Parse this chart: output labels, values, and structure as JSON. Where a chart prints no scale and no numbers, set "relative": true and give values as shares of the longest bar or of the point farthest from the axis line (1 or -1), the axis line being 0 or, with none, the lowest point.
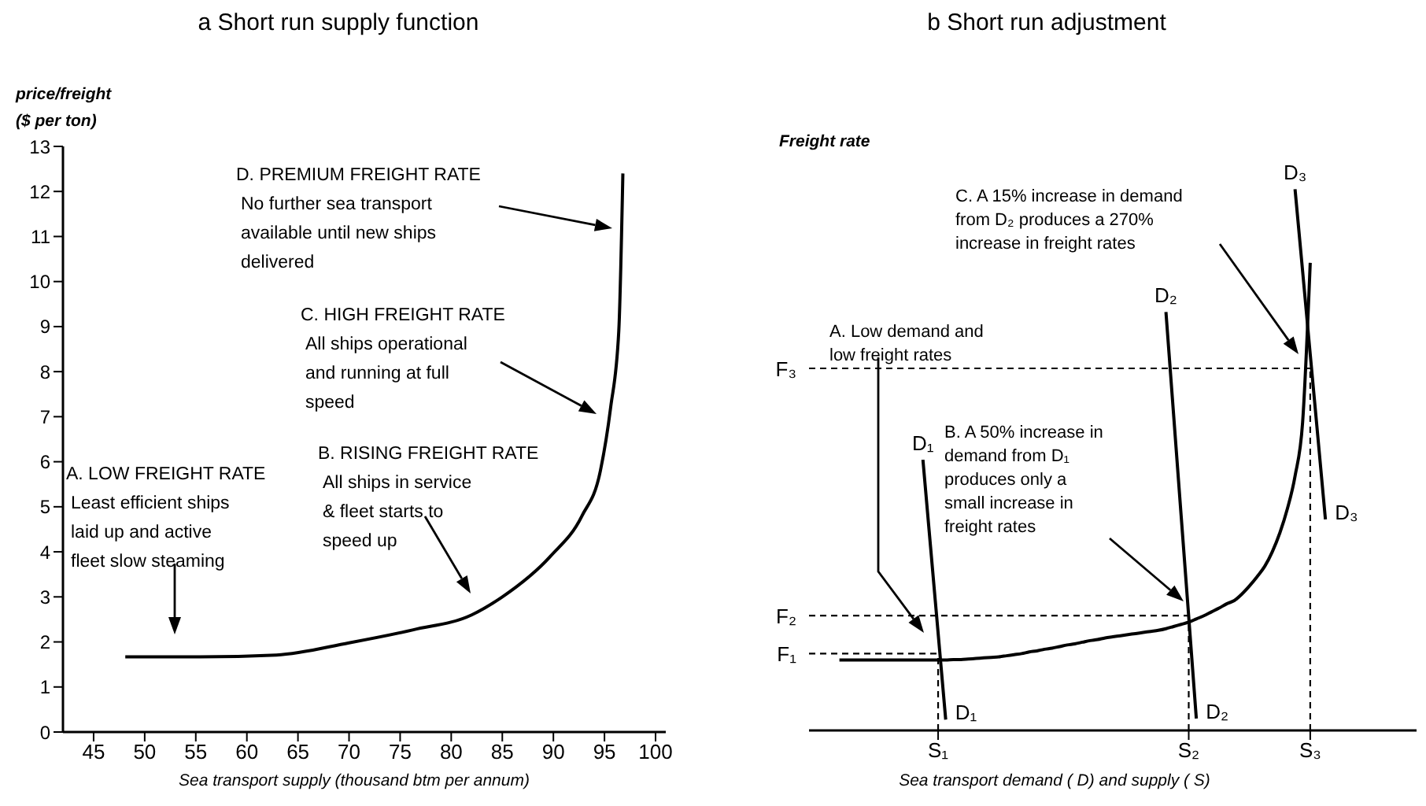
{
  "chart_data": [
    {
      "type": "line",
      "title": "a Short run supply function",
      "xlabel": "Sea transport supply (thousand btm per annum)",
      "ylabel": "price/freight\n($ per ton)",
      "marker": "none",
      "xlim": [
        42,
        101
      ],
      "xticks": [
        45,
        50,
        55,
        60,
        65,
        70,
        75,
        80,
        85,
        90,
        95,
        100
      ],
      "ylim": [
        0,
        13
      ],
      "yticks": [
        0,
        1,
        2,
        3,
        4,
        5,
        6,
        7,
        8,
        9,
        10,
        11,
        12,
        13
      ],
      "series": [
        {
          "color": "#000000",
          "x": [
            48.1,
            55,
            62.9,
            70,
            76.3,
            82,
            85,
            89.7,
            92.8,
            94.6,
            95.6,
            96.4,
            96.8
          ],
          "values": [
            1.67,
            1.67,
            1.71,
            1.98,
            2.27,
            2.6,
            3.0,
            3.9,
            4.8,
            5.8,
            7.2,
            8.9,
            12.4
          ]
        }
      ],
      "annotations": [
        "A. LOW FREIGHT RATE\nLeast efficient ships\nlaid up and active\nfleet slow steaming",
        "B. RISING FREIGHT RATE\nAll ships in service\n& fleet starts to\nspeed up",
        "C. HIGH FREIGHT RATE\nAll ships operational\nand running at full\nspeed",
        "D. PREMIUM FREIGHT RATE\nNo further sea transport\navailable until new ships\ndelivered"
      ]
    },
    {
      "type": "line",
      "title": "b Short run adjustment",
      "xlabel": "Sea transport demand ( D) and supply ( S)",
      "ylabel": "Freight rate",
      "relative": true,
      "marker": "none",
      "categories": [
        null,
        null,
        null,
        null,
        null,
        null,
        null,
        null,
        null,
        null,
        null,
        null,
        null,
        null,
        null,
        null,
        null,
        "S₁",
        null,
        null,
        null,
        null,
        null,
        null,
        null,
        null,
        null,
        null,
        null,
        null,
        null,
        null,
        null,
        null,
        null,
        null,
        null,
        null,
        null,
        null,
        null,
        null,
        null,
        null,
        null,
        null,
        null,
        null,
        null,
        null,
        "S₂",
        null,
        null,
        null,
        null,
        null,
        null,
        null,
        null,
        null,
        null,
        null,
        null,
        null,
        null,
        null,
        "S₃",
        null,
        null,
        null,
        null,
        null,
        null,
        null,
        null,
        null,
        null,
        null,
        null,
        null,
        null
      ],
      "series": [
        {
          "color": "#000000",
          "values": [
            null,
            null,
            null,
            null,
            0.13,
            0.13,
            0.13,
            0.13,
            0.13,
            0.13,
            0.13,
            0.13,
            0.13,
            0.13,
            0.13,
            0.13,
            0.13,
            0.13,
            0.13,
            0.131,
            0.131,
            0.132,
            0.133,
            0.134,
            0.135,
            0.136,
            0.138,
            0.14,
            0.142,
            0.145,
            0.147,
            0.15,
            0.152,
            0.155,
            0.158,
            0.16,
            0.163,
            0.166,
            0.168,
            0.171,
            0.173,
            0.175,
            0.177,
            0.179,
            0.181,
            0.183,
            0.185,
            0.188,
            0.192,
            0.196,
            0.2,
            0.206,
            0.212,
            0.219,
            0.226,
            0.234,
            0.24,
            0.252,
            0.267,
            0.284,
            0.303,
            0.33,
            0.365,
            0.41,
            0.47,
            0.57,
            0.864,
            null,
            null,
            null,
            null,
            null,
            null,
            null,
            null,
            null,
            null,
            null,
            null,
            null,
            null
          ]
        },
        {
          "name": "D₁",
          "color": "#000000",
          "values": [
            null,
            null,
            null,
            null,
            null,
            null,
            null,
            null,
            null,
            null,
            null,
            null,
            null,
            null,
            null,
            0.5,
            0.34,
            0.18,
            0.02,
            null,
            null,
            null,
            null,
            null,
            null,
            null,
            null,
            null,
            null,
            null,
            null,
            null,
            null,
            null,
            null,
            null,
            null,
            null,
            null,
            null,
            null,
            null,
            null,
            null,
            null,
            null,
            null,
            null,
            null,
            null,
            null,
            null,
            null,
            null,
            null,
            null,
            null,
            null,
            null,
            null,
            null,
            null,
            null,
            null,
            null,
            null,
            null,
            null,
            null,
            null,
            null,
            null,
            null,
            null,
            null,
            null,
            null,
            null,
            null,
            null,
            null
          ]
        },
        {
          "name": "D₂",
          "color": "#000000",
          "values": [
            null,
            null,
            null,
            null,
            null,
            null,
            null,
            null,
            null,
            null,
            null,
            null,
            null,
            null,
            null,
            null,
            null,
            null,
            null,
            null,
            null,
            null,
            null,
            null,
            null,
            null,
            null,
            null,
            null,
            null,
            null,
            null,
            null,
            null,
            null,
            null,
            null,
            null,
            null,
            null,
            null,
            null,
            null,
            null,
            null,
            null,
            null,
            0.773,
            0.585,
            0.397,
            0.21,
            0.022,
            null,
            null,
            null,
            null,
            null,
            null,
            null,
            null,
            null,
            null,
            null,
            null,
            null,
            null,
            null,
            null,
            null,
            null,
            null,
            null,
            null,
            null,
            null,
            null,
            null,
            null,
            null,
            null,
            null
          ]
        },
        {
          "name": "D₃",
          "color": "#000000",
          "values": [
            null,
            null,
            null,
            null,
            null,
            null,
            null,
            null,
            null,
            null,
            null,
            null,
            null,
            null,
            null,
            null,
            null,
            null,
            null,
            null,
            null,
            null,
            null,
            null,
            null,
            null,
            null,
            null,
            null,
            null,
            null,
            null,
            null,
            null,
            null,
            null,
            null,
            null,
            null,
            null,
            null,
            null,
            null,
            null,
            null,
            null,
            null,
            null,
            null,
            null,
            null,
            null,
            null,
            null,
            null,
            null,
            null,
            null,
            null,
            null,
            null,
            null,
            null,
            null,
            1.0,
            0.848,
            0.695,
            0.543,
            0.39,
            null,
            null,
            null,
            null,
            null,
            null,
            null,
            null,
            null,
            null,
            null,
            null
          ]
        }
      ],
      "ref_lines": [
        {
          "axis": "y",
          "value": 0.142,
          "label": "F₁",
          "line_style": "dashed"
        },
        {
          "axis": "y",
          "value": 0.212,
          "label": "F₂",
          "line_style": "dashed"
        },
        {
          "axis": "y",
          "value": 0.669,
          "label": "F₃",
          "line_style": "dashed"
        },
        {
          "axis": "x",
          "value": "S₁",
          "line_style": "dashed"
        },
        {
          "axis": "x",
          "value": "S₂",
          "line_style": "dashed"
        },
        {
          "axis": "x",
          "value": "S₃",
          "line_style": "dashed"
        }
      ],
      "annotations": [
        "A. Low demand and\nlow freight rates",
        "B. A 50% increase in\ndemand from D₁\nproduces only a\nsmall increase in\nfreight rates",
        "C. A 15% increase in demand\nfrom D₂ produces a 270%\nincrease in freight rates"
      ]
    }
  ]
}
